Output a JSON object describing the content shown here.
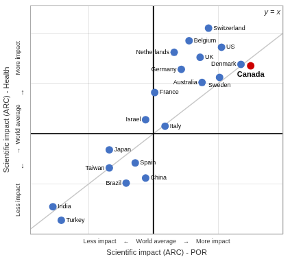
{
  "chart_data": {
    "type": "scatter",
    "xlabel": "Scientific impact (ARC) - POR",
    "ylabel": "Scientific impact (ARC) - Health",
    "xlabel_sub": "Less impact    ←    World average    →    More impact",
    "ylabel_sub": [
      "More impact",
      "↑",
      "→  World average",
      "↓",
      "Less impact"
    ],
    "diagonal_label": "y = x",
    "world_average": {
      "x": 0,
      "y": 0
    },
    "point_labels": [
      "Canada",
      "Switzerland",
      "Belgium",
      "US",
      "Netherlands",
      "UK",
      "Denmark",
      "Germany",
      "Sweden",
      "Australia",
      "France",
      "Israel",
      "Italy",
      "Japan",
      "Spain",
      "Taiwan",
      "China",
      "Brazil",
      "India",
      "Turkey"
    ],
    "x": [
      1.5,
      0.85,
      0.55,
      1.05,
      0.32,
      0.72,
      1.35,
      0.43,
      1.02,
      0.75,
      0.02,
      -0.12,
      0.18,
      -0.68,
      -0.28,
      -0.68,
      -0.12,
      -0.42,
      -1.55,
      -1.42
    ],
    "values": [
      1.35,
      2.1,
      1.85,
      1.72,
      1.62,
      1.52,
      1.38,
      1.28,
      1.12,
      1.02,
      0.82,
      0.28,
      0.15,
      -0.32,
      -0.58,
      -0.68,
      -0.88,
      -0.98,
      -1.45,
      -1.72
    ],
    "colors": [
      "#cc0000",
      "#4472c4",
      "#4472c4",
      "#4472c4",
      "#4472c4",
      "#4472c4",
      "#4472c4",
      "#4472c4",
      "#4472c4",
      "#4472c4",
      "#4472c4",
      "#4472c4",
      "#4472c4",
      "#4472c4",
      "#4472c4",
      "#4472c4",
      "#4472c4",
      "#4472c4",
      "#4472c4",
      "#4472c4"
    ],
    "highlight": [
      "Canada"
    ],
    "xlim": [
      -1.9,
      2.0
    ],
    "ylim": [
      -2.0,
      2.55
    ],
    "xticks": [
      -1,
      0,
      1,
      2
    ],
    "yticks": [
      -2,
      -1,
      0,
      1,
      2
    ],
    "grid": true,
    "tick_labels": false
  }
}
